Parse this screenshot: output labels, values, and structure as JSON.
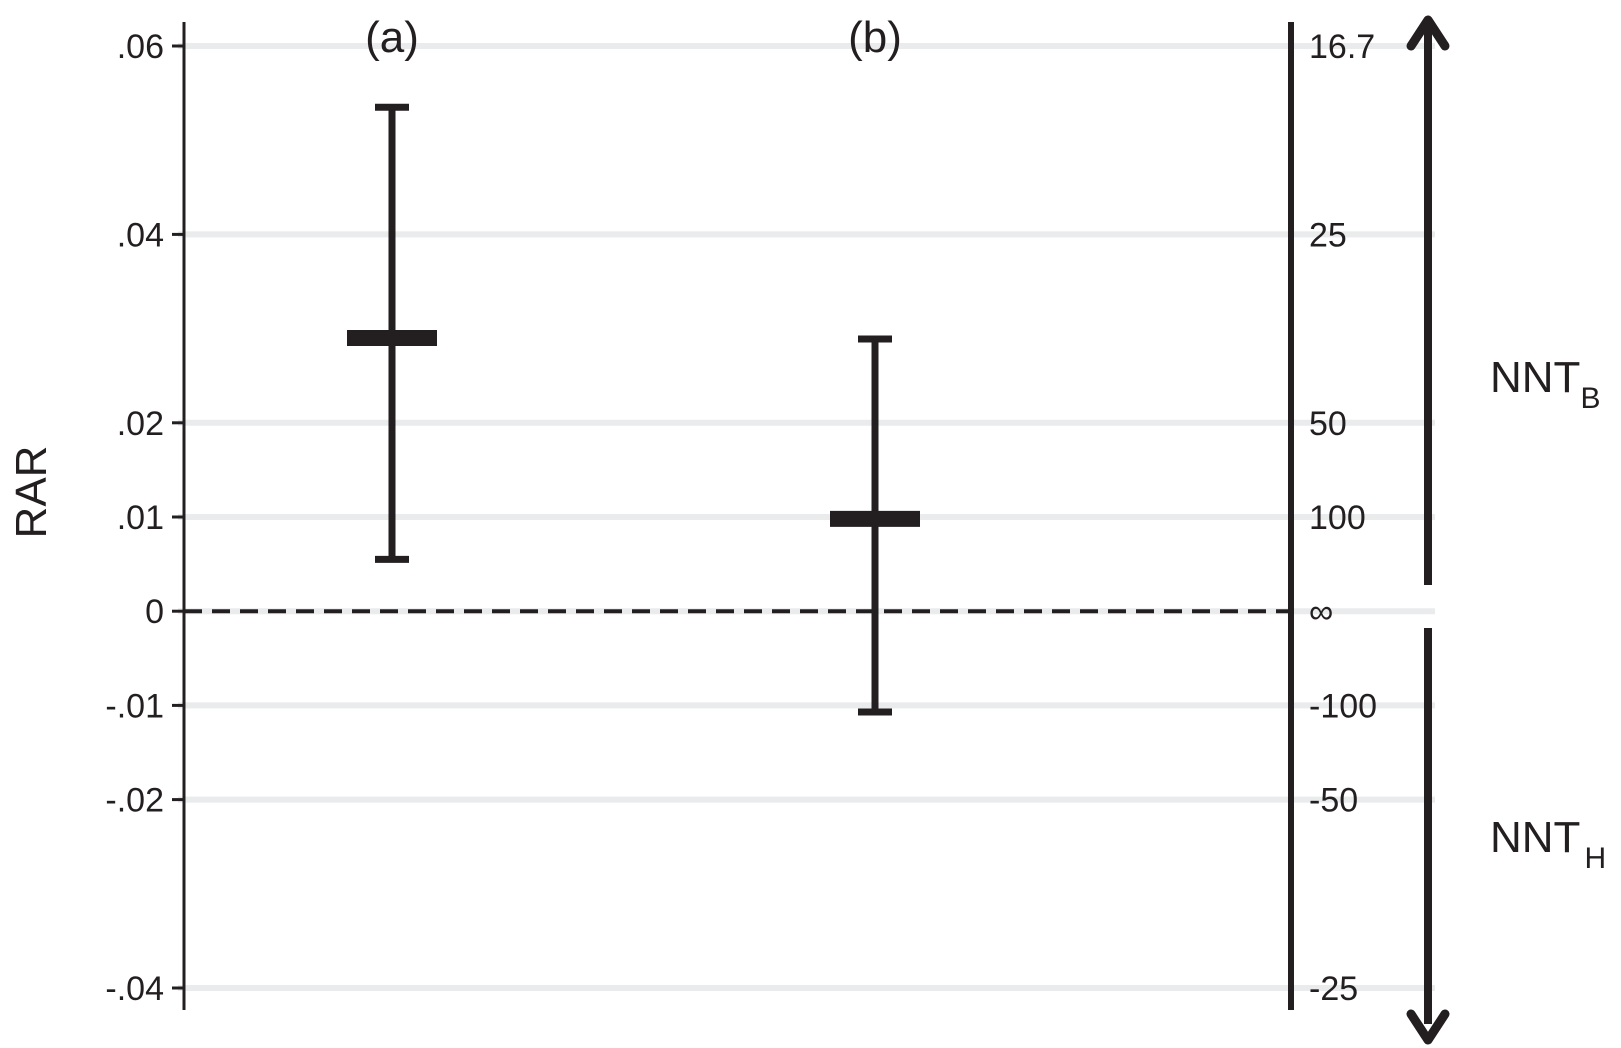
{
  "chart_data": {
    "type": "errorbar",
    "ylabel": "RAR",
    "ylim": [
      -0.04,
      0.06
    ],
    "y_ticks": [
      {
        "value": 0.06,
        "label": ".06"
      },
      {
        "value": 0.04,
        "label": ".04"
      },
      {
        "value": 0.02,
        "label": ".02"
      },
      {
        "value": 0.01,
        "label": ".01"
      },
      {
        "value": 0,
        "label": "0"
      },
      {
        "value": -0.01,
        "label": "-.01"
      },
      {
        "value": -0.02,
        "label": "-.02"
      },
      {
        "value": -0.04,
        "label": "-.04"
      }
    ],
    "nnt_ticks": [
      {
        "value": 0.06,
        "label": "16.7"
      },
      {
        "value": 0.04,
        "label": "25"
      },
      {
        "value": 0.02,
        "label": "50"
      },
      {
        "value": 0.01,
        "label": "100"
      },
      {
        "value": 0,
        "label": "∞"
      },
      {
        "value": -0.01,
        "label": "-100"
      },
      {
        "value": -0.02,
        "label": "-50"
      },
      {
        "value": -0.04,
        "label": "-25"
      }
    ],
    "reference_line": {
      "value": 0,
      "style": "dashed"
    },
    "grid": true,
    "categories": [
      "(a)",
      "(b)"
    ],
    "points": [
      {
        "category": "(a)",
        "estimate": 0.029,
        "lower": 0.0055,
        "upper": 0.0535
      },
      {
        "category": "(b)",
        "estimate": 0.0098,
        "lower": -0.0107,
        "upper": 0.0289
      }
    ],
    "side_labels": [
      {
        "main": "NNT",
        "sub": "B",
        "direction": "up"
      },
      {
        "main": "NNT",
        "sub": "H",
        "direction": "down"
      }
    ],
    "colors": {
      "ink": "#231f20",
      "grid": "#e9ebed"
    }
  }
}
